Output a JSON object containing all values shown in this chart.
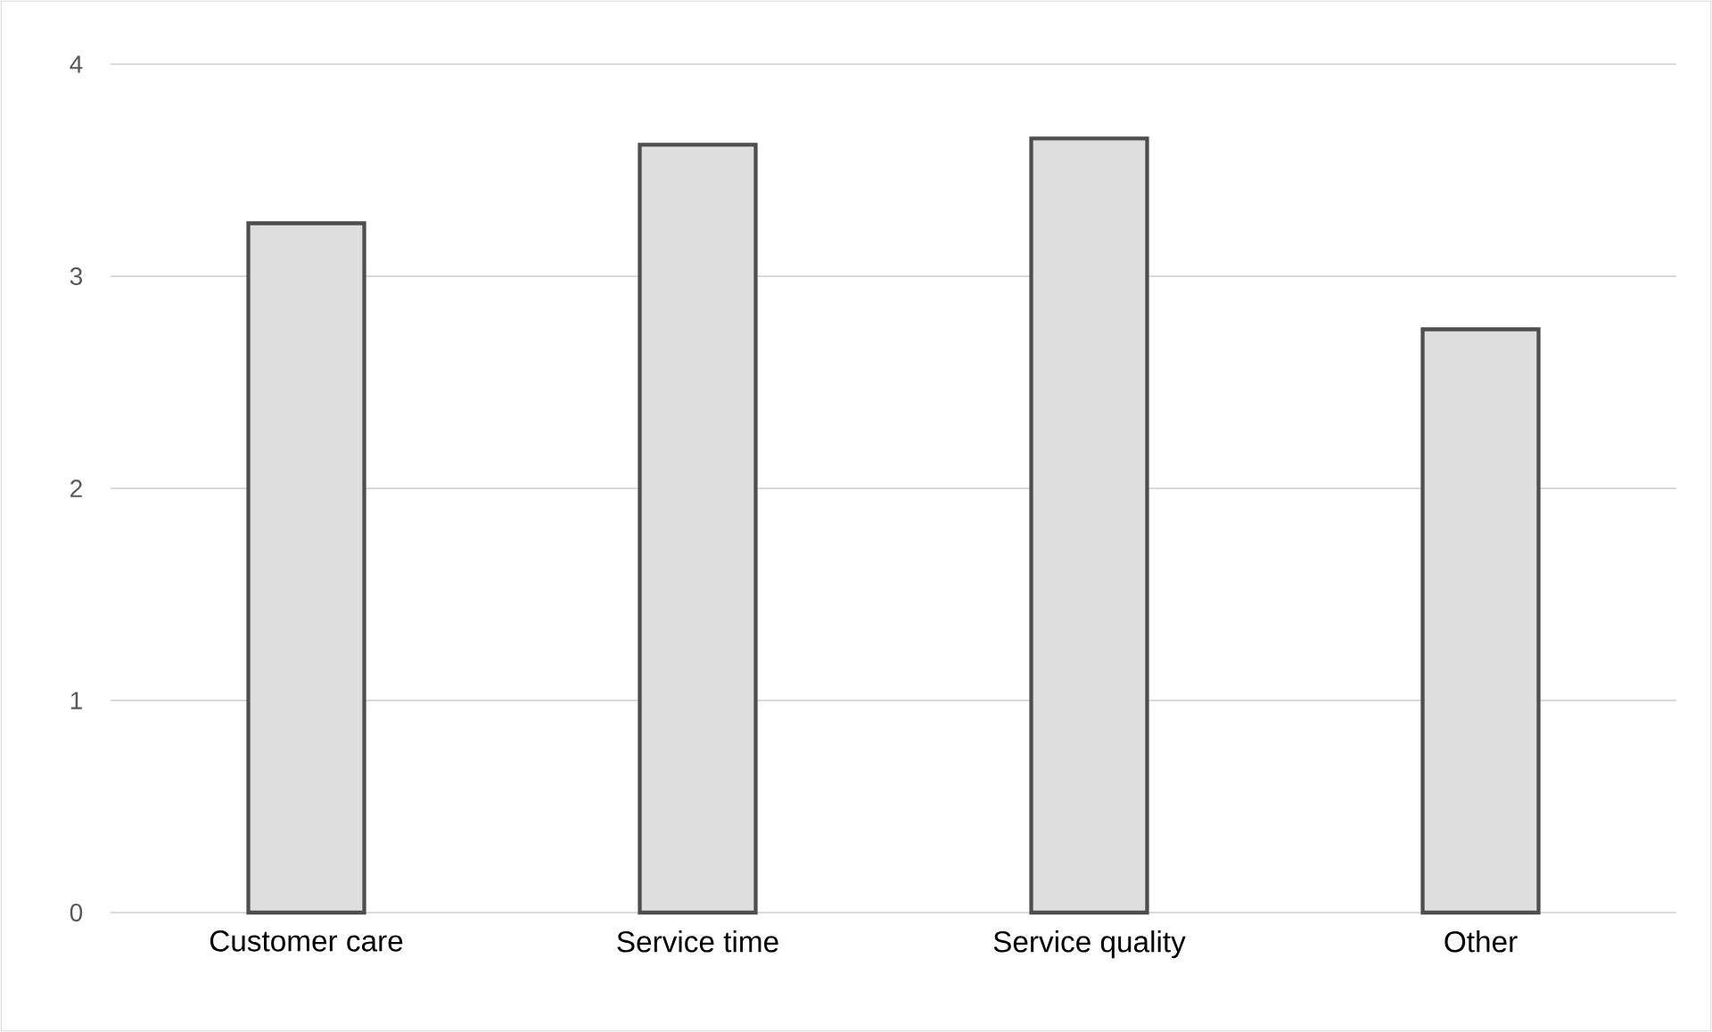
{
  "chart_data": {
    "type": "bar",
    "categories": [
      "Customer care",
      "Service time",
      "Service quality",
      "Other"
    ],
    "values": [
      3.25,
      3.62,
      3.65,
      2.75
    ],
    "color": "#dedede",
    "ylim": [
      0,
      4
    ],
    "yticks": [
      0,
      1,
      2,
      3,
      4
    ],
    "grid": "y"
  }
}
